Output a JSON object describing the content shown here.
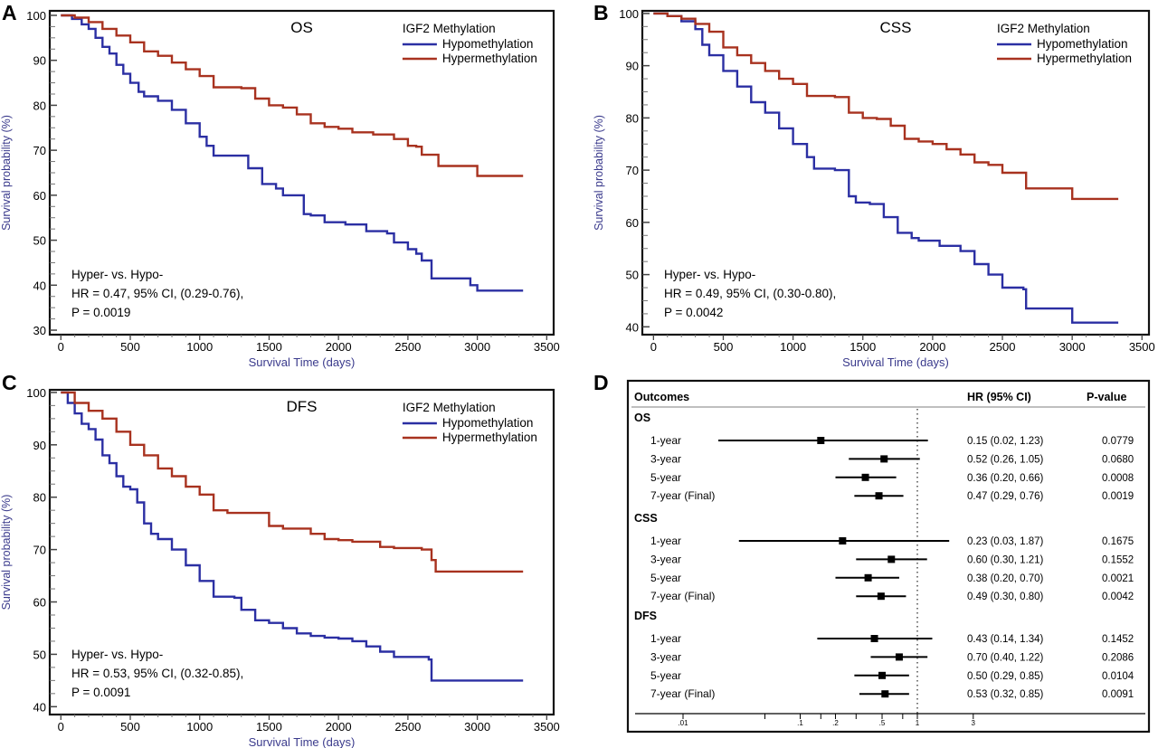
{
  "panels": {
    "A": {
      "letter": "A"
    },
    "B": {
      "letter": "B"
    },
    "C": {
      "letter": "C"
    },
    "D": {
      "letter": "D"
    }
  },
  "colors": {
    "hypo": "#2b2fa3",
    "hyper": "#a8321f",
    "axis": "#111111",
    "ylabel": "#3a3a8c"
  },
  "chart_data": [
    {
      "id": "A",
      "type": "line",
      "title": "OS",
      "xlabel": "Survival Time (days)",
      "ylabel": "Survival probability (%)",
      "xlim": [
        -80,
        3550
      ],
      "ylim": [
        29,
        101
      ],
      "xticks": [
        0,
        500,
        1000,
        1500,
        2000,
        2500,
        3000,
        3500
      ],
      "yticks": [
        30,
        40,
        50,
        60,
        70,
        80,
        90,
        100
      ],
      "legend": {
        "title": "IGF2 Methylation",
        "position": "top-right"
      },
      "annotation": [
        "Hyper- vs. Hypo-",
        "HR = 0.47, 95% CI, (0.29-0.76),",
        "P = 0.0019"
      ],
      "series": [
        {
          "name": "Hypomethylation",
          "color": "#2b2fa3",
          "points": [
            [
              0,
              100
            ],
            [
              80,
              99.2
            ],
            [
              150,
              98
            ],
            [
              200,
              97
            ],
            [
              250,
              95
            ],
            [
              300,
              93
            ],
            [
              350,
              91.5
            ],
            [
              400,
              89
            ],
            [
              450,
              87
            ],
            [
              500,
              85
            ],
            [
              560,
              83
            ],
            [
              600,
              82
            ],
            [
              700,
              81
            ],
            [
              800,
              79
            ],
            [
              900,
              76
            ],
            [
              1000,
              73
            ],
            [
              1050,
              71
            ],
            [
              1100,
              68.8
            ],
            [
              1250,
              68.8
            ],
            [
              1350,
              66
            ],
            [
              1450,
              62.5
            ],
            [
              1550,
              61.5
            ],
            [
              1600,
              60
            ],
            [
              1750,
              55.8
            ],
            [
              1800,
              55.5
            ],
            [
              1900,
              54
            ],
            [
              2050,
              53.5
            ],
            [
              2200,
              52
            ],
            [
              2350,
              51.5
            ],
            [
              2400,
              49.5
            ],
            [
              2500,
              48
            ],
            [
              2560,
              47
            ],
            [
              2600,
              45.5
            ],
            [
              2660,
              45.5
            ],
            [
              2670,
              41.5
            ],
            [
              2900,
              41.5
            ],
            [
              2950,
              40
            ],
            [
              3000,
              38.8
            ],
            [
              3330,
              38.8
            ]
          ]
        },
        {
          "name": "Hypermethylation",
          "color": "#a8321f",
          "points": [
            [
              0,
              100
            ],
            [
              100,
              99.5
            ],
            [
              200,
              98.5
            ],
            [
              300,
              97
            ],
            [
              400,
              95.5
            ],
            [
              500,
              94
            ],
            [
              600,
              92
            ],
            [
              700,
              91
            ],
            [
              800,
              89.5
            ],
            [
              900,
              88
            ],
            [
              1000,
              86.5
            ],
            [
              1100,
              84
            ],
            [
              1300,
              83.8
            ],
            [
              1400,
              81.5
            ],
            [
              1500,
              80
            ],
            [
              1600,
              79.5
            ],
            [
              1700,
              78
            ],
            [
              1800,
              76
            ],
            [
              1900,
              75.2
            ],
            [
              2000,
              74.8
            ],
            [
              2100,
              74
            ],
            [
              2250,
              73.5
            ],
            [
              2400,
              72.5
            ],
            [
              2500,
              71
            ],
            [
              2560,
              70.8
            ],
            [
              2600,
              69
            ],
            [
              2700,
              69
            ],
            [
              2720,
              66.5
            ],
            [
              2950,
              66.5
            ],
            [
              3000,
              64.3
            ],
            [
              3330,
              64.3
            ]
          ]
        }
      ]
    },
    {
      "id": "B",
      "type": "line",
      "title": "CSS",
      "xlabel": "Survival Time (days)",
      "ylabel": "Survival probability (%)",
      "xlim": [
        -80,
        3550
      ],
      "ylim": [
        38.5,
        100.5
      ],
      "xticks": [
        0,
        500,
        1000,
        1500,
        2000,
        2500,
        3000,
        3500
      ],
      "yticks": [
        40,
        50,
        60,
        70,
        80,
        90,
        100
      ],
      "legend": {
        "title": "IGF2 Methylation",
        "position": "top-right"
      },
      "annotation": [
        "Hyper- vs. Hypo-",
        "HR = 0.49, 95% CI, (0.30-0.80),",
        "P = 0.0042"
      ],
      "series": [
        {
          "name": "Hypomethylation",
          "color": "#2b2fa3",
          "points": [
            [
              0,
              100
            ],
            [
              100,
              99.5
            ],
            [
              200,
              98.5
            ],
            [
              300,
              97
            ],
            [
              350,
              94
            ],
            [
              400,
              92
            ],
            [
              500,
              89
            ],
            [
              600,
              86
            ],
            [
              700,
              83
            ],
            [
              800,
              81
            ],
            [
              900,
              78
            ],
            [
              1000,
              75
            ],
            [
              1100,
              72.5
            ],
            [
              1150,
              70.3
            ],
            [
              1300,
              70
            ],
            [
              1400,
              65
            ],
            [
              1450,
              63.8
            ],
            [
              1550,
              63.5
            ],
            [
              1650,
              61
            ],
            [
              1750,
              58
            ],
            [
              1850,
              57
            ],
            [
              1900,
              56.5
            ],
            [
              2050,
              55.5
            ],
            [
              2200,
              54.5
            ],
            [
              2300,
              52
            ],
            [
              2400,
              50
            ],
            [
              2500,
              47.5
            ],
            [
              2650,
              47.2
            ],
            [
              2670,
              43.5
            ],
            [
              2950,
              43.5
            ],
            [
              3000,
              40.8
            ],
            [
              3330,
              40.8
            ]
          ]
        },
        {
          "name": "Hypermethylation",
          "color": "#a8321f",
          "points": [
            [
              0,
              100
            ],
            [
              100,
              99.5
            ],
            [
              200,
              99
            ],
            [
              300,
              98
            ],
            [
              400,
              96.5
            ],
            [
              500,
              93.5
            ],
            [
              600,
              92
            ],
            [
              700,
              90.5
            ],
            [
              800,
              89
            ],
            [
              900,
              87.5
            ],
            [
              1000,
              86.5
            ],
            [
              1100,
              84.2
            ],
            [
              1300,
              84
            ],
            [
              1400,
              81
            ],
            [
              1500,
              80
            ],
            [
              1600,
              79.8
            ],
            [
              1700,
              78.5
            ],
            [
              1800,
              76
            ],
            [
              1900,
              75.5
            ],
            [
              2000,
              75
            ],
            [
              2100,
              74
            ],
            [
              2200,
              73
            ],
            [
              2300,
              71.5
            ],
            [
              2400,
              71
            ],
            [
              2500,
              69.5
            ],
            [
              2650,
              69.5
            ],
            [
              2670,
              66.5
            ],
            [
              2950,
              66.5
            ],
            [
              3000,
              64.5
            ],
            [
              3330,
              64.5
            ]
          ]
        }
      ]
    },
    {
      "id": "C",
      "type": "line",
      "title": "DFS",
      "xlabel": "Survival Time (days)",
      "ylabel": "Survival probability (%)",
      "xlim": [
        -80,
        3550
      ],
      "ylim": [
        38.5,
        100.5
      ],
      "xticks": [
        0,
        500,
        1000,
        1500,
        2000,
        2500,
        3000,
        3500
      ],
      "yticks": [
        40,
        50,
        60,
        70,
        80,
        90,
        100
      ],
      "legend": {
        "title": "IGF2 Methylation",
        "position": "top-right"
      },
      "annotation": [
        "Hyper- vs. Hypo-",
        "HR = 0.53, 95% CI, (0.32-0.85),",
        "P = 0.0091"
      ],
      "series": [
        {
          "name": "Hypomethylation",
          "color": "#2b2fa3",
          "points": [
            [
              0,
              100
            ],
            [
              50,
              98
            ],
            [
              100,
              96
            ],
            [
              150,
              94
            ],
            [
              200,
              93
            ],
            [
              250,
              91
            ],
            [
              300,
              88
            ],
            [
              350,
              86.5
            ],
            [
              400,
              84
            ],
            [
              450,
              82
            ],
            [
              500,
              81.5
            ],
            [
              550,
              79
            ],
            [
              600,
              75
            ],
            [
              650,
              73
            ],
            [
              700,
              72
            ],
            [
              800,
              70
            ],
            [
              900,
              67
            ],
            [
              1000,
              64
            ],
            [
              1100,
              61
            ],
            [
              1250,
              60.8
            ],
            [
              1300,
              58.5
            ],
            [
              1400,
              56.5
            ],
            [
              1500,
              56
            ],
            [
              1600,
              55
            ],
            [
              1700,
              54
            ],
            [
              1800,
              53.5
            ],
            [
              1900,
              53.2
            ],
            [
              2000,
              53
            ],
            [
              2100,
              52.5
            ],
            [
              2200,
              51.5
            ],
            [
              2300,
              50.5
            ],
            [
              2400,
              49.5
            ],
            [
              2650,
              49
            ],
            [
              2670,
              45
            ],
            [
              3330,
              45
            ]
          ]
        },
        {
          "name": "Hypermethylation",
          "color": "#a8321f",
          "points": [
            [
              0,
              100
            ],
            [
              100,
              98
            ],
            [
              200,
              96.5
            ],
            [
              300,
              95
            ],
            [
              400,
              92.5
            ],
            [
              500,
              90
            ],
            [
              600,
              88
            ],
            [
              700,
              85.5
            ],
            [
              800,
              84
            ],
            [
              900,
              82
            ],
            [
              1000,
              80.5
            ],
            [
              1100,
              79
            ],
            [
              1100,
              77.5
            ],
            [
              1200,
              77
            ],
            [
              1400,
              77
            ],
            [
              1500,
              74.5
            ],
            [
              1600,
              74
            ],
            [
              1800,
              73
            ],
            [
              1900,
              72
            ],
            [
              2000,
              71.8
            ],
            [
              2100,
              71.5
            ],
            [
              2300,
              70.5
            ],
            [
              2400,
              70.3
            ],
            [
              2600,
              70
            ],
            [
              2670,
              68
            ],
            [
              2700,
              65.8
            ],
            [
              3330,
              65.8
            ]
          ]
        }
      ]
    },
    {
      "id": "D",
      "type": "table",
      "headers": {
        "outcome": "Outcomes",
        "hr": "HR (95% CI)",
        "p": "P-value"
      },
      "xscale": "log",
      "xticks": [
        {
          "v": 0.01,
          "label": ".01"
        },
        {
          "v": 0.05,
          "label": ""
        },
        {
          "v": 0.1,
          "label": ".1"
        },
        {
          "v": 0.15,
          "label": ""
        },
        {
          "v": 0.2,
          "label": ".2"
        },
        {
          "v": 0.3,
          "label": ""
        },
        {
          "v": 0.5,
          "label": ".5"
        },
        {
          "v": 0.75,
          "label": ""
        },
        {
          "v": 1,
          "label": "1"
        },
        {
          "v": 3,
          "label": "3"
        }
      ],
      "reference_line": 1,
      "groups": [
        {
          "name": "OS",
          "rows": [
            {
              "label": "1-year",
              "hr": 0.15,
              "lo": 0.02,
              "hi": 1.23,
              "ci": "0.15 (0.02, 1.23)",
              "p": "0.0779"
            },
            {
              "label": "3-year",
              "hr": 0.52,
              "lo": 0.26,
              "hi": 1.05,
              "ci": "0.52 (0.26, 1.05)",
              "p": "0.0680"
            },
            {
              "label": "5-year",
              "hr": 0.36,
              "lo": 0.2,
              "hi": 0.66,
              "ci": "0.36 (0.20, 0.66)",
              "p": "0.0008"
            },
            {
              "label": "7-year (Final)",
              "hr": 0.47,
              "lo": 0.29,
              "hi": 0.76,
              "ci": "0.47 (0.29, 0.76)",
              "p": "0.0019"
            }
          ]
        },
        {
          "name": "CSS",
          "rows": [
            {
              "label": "1-year",
              "hr": 0.23,
              "lo": 0.03,
              "hi": 1.87,
              "ci": "0.23 (0.03, 1.87)",
              "p": "0.1675"
            },
            {
              "label": "3-year",
              "hr": 0.6,
              "lo": 0.3,
              "hi": 1.21,
              "ci": "0.60 (0.30, 1.21)",
              "p": "0.1552"
            },
            {
              "label": "5-year",
              "hr": 0.38,
              "lo": 0.2,
              "hi": 0.7,
              "ci": "0.38 (0.20, 0.70)",
              "p": "0.0021"
            },
            {
              "label": "7-year (Final)",
              "hr": 0.49,
              "lo": 0.3,
              "hi": 0.8,
              "ci": "0.49 (0.30, 0.80)",
              "p": "0.0042"
            }
          ]
        },
        {
          "name": "DFS",
          "rows": [
            {
              "label": "1-year",
              "hr": 0.43,
              "lo": 0.14,
              "hi": 1.34,
              "ci": "0.43 (0.14, 1.34)",
              "p": "0.1452"
            },
            {
              "label": "3-year",
              "hr": 0.7,
              "lo": 0.4,
              "hi": 1.22,
              "ci": "0.70 (0.40, 1.22)",
              "p": "0.2086"
            },
            {
              "label": "5-year",
              "hr": 0.5,
              "lo": 0.29,
              "hi": 0.85,
              "ci": "0.50 (0.29, 0.85)",
              "p": "0.0104"
            },
            {
              "label": "7-year  (Final)",
              "hr": 0.53,
              "lo": 0.32,
              "hi": 0.85,
              "ci": "0.53 (0.32, 0.85)",
              "p": "0.0091"
            }
          ]
        }
      ]
    }
  ]
}
